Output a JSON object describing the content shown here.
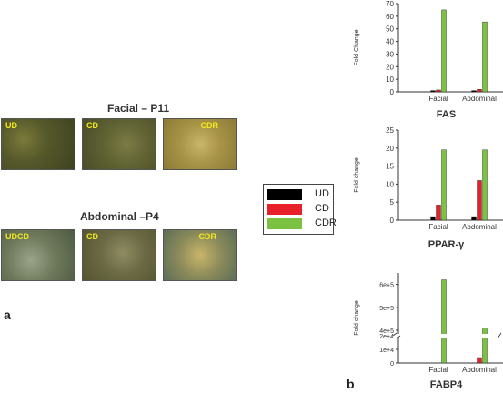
{
  "panel_a": {
    "letter": "a",
    "row1_title": "Facial – P11",
    "row2_title": "Abdominal –P4",
    "row1_images": [
      "UD",
      "CD",
      "CDR"
    ],
    "row2_images": [
      "UDCD",
      "CD",
      "CDR"
    ]
  },
  "panel_b": {
    "letter": "b"
  },
  "legend": [
    {
      "label": "UD",
      "color": "#000000"
    },
    {
      "label": "CD",
      "color": "#e8202a"
    },
    {
      "label": "CDR",
      "color": "#7cc242"
    }
  ],
  "chart_data": [
    {
      "type": "bar",
      "title": "FAS",
      "ylabel": "Fold Change",
      "categories": [
        "Facial",
        "Abdominal"
      ],
      "ylim": [
        0,
        70
      ],
      "yticks": [
        0,
        10,
        20,
        30,
        40,
        50,
        60,
        70
      ],
      "series": [
        {
          "name": "UD",
          "values": [
            1,
            1
          ]
        },
        {
          "name": "CD",
          "values": [
            1.5,
            2
          ]
        },
        {
          "name": "CDR",
          "values": [
            65,
            55.5
          ]
        }
      ]
    },
    {
      "type": "bar",
      "title": "PPAR-γ",
      "ylabel": "Fold change",
      "categories": [
        "Facial",
        "Abdominal"
      ],
      "ylim": [
        0,
        25
      ],
      "yticks": [
        0,
        5,
        10,
        15,
        20,
        25
      ],
      "series": [
        {
          "name": "UD",
          "values": [
            1,
            1
          ]
        },
        {
          "name": "CD",
          "values": [
            4.2,
            11
          ]
        },
        {
          "name": "CDR",
          "values": [
            19.5,
            19.5
          ]
        }
      ]
    },
    {
      "type": "bar",
      "title": "FABP4",
      "ylabel": "Fold change",
      "categories": [
        "Facial",
        "Abdominal"
      ],
      "yticks": [
        "0",
        "1e+4",
        "2e+4",
        "4e+5",
        "5e+5",
        "6e+5"
      ],
      "axis_break": true,
      "series": [
        {
          "name": "UD",
          "values": [
            0,
            0
          ]
        },
        {
          "name": "CD",
          "values": [
            0,
            4000
          ]
        },
        {
          "name": "CDR",
          "values": [
            620000,
            410000
          ]
        }
      ]
    }
  ]
}
